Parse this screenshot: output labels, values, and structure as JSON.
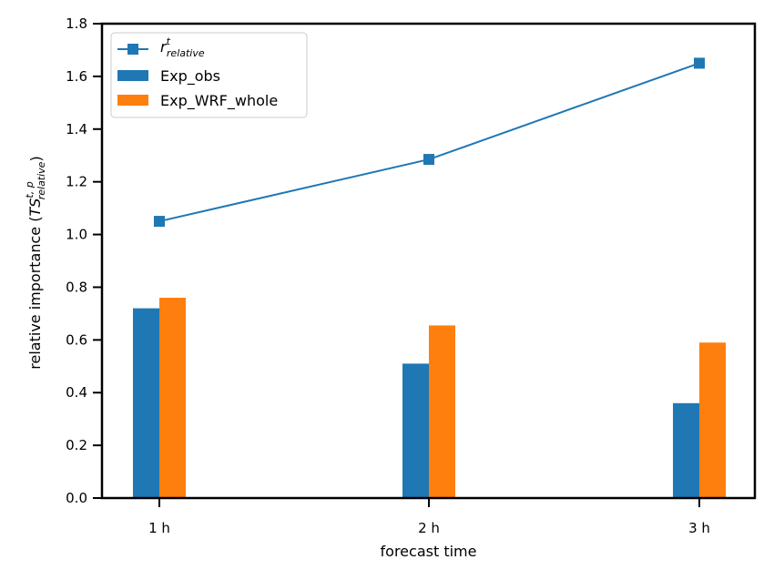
{
  "chart_data": {
    "type": "bar",
    "categories": [
      "1 h",
      "2 h",
      "3 h"
    ],
    "xlabel": "forecast time",
    "ylabel": {
      "prefix": "relative importance (",
      "base": "TS",
      "sup": "t, p",
      "sub": "relative",
      "suffix": ")"
    },
    "ylim": [
      0,
      1.8
    ],
    "yticks": [
      "0.0",
      "0.2",
      "0.4",
      "0.6",
      "0.8",
      "1.0",
      "1.2",
      "1.4",
      "1.6",
      "1.8"
    ],
    "grid": false,
    "legend_position": "top-left",
    "series": [
      {
        "name": "Exp_obs",
        "kind": "bar",
        "color": "#1f77b4",
        "values": [
          0.72,
          0.51,
          0.36
        ]
      },
      {
        "name": "Exp_WRF_whole",
        "kind": "bar",
        "color": "#ff7f0e",
        "values": [
          0.76,
          0.655,
          0.59
        ]
      },
      {
        "name": {
          "base": "r",
          "sup": "t",
          "sub": "relative"
        },
        "kind": "line",
        "marker": "square",
        "color": "#1f77b4",
        "values": [
          1.05,
          1.285,
          1.65
        ]
      }
    ]
  }
}
